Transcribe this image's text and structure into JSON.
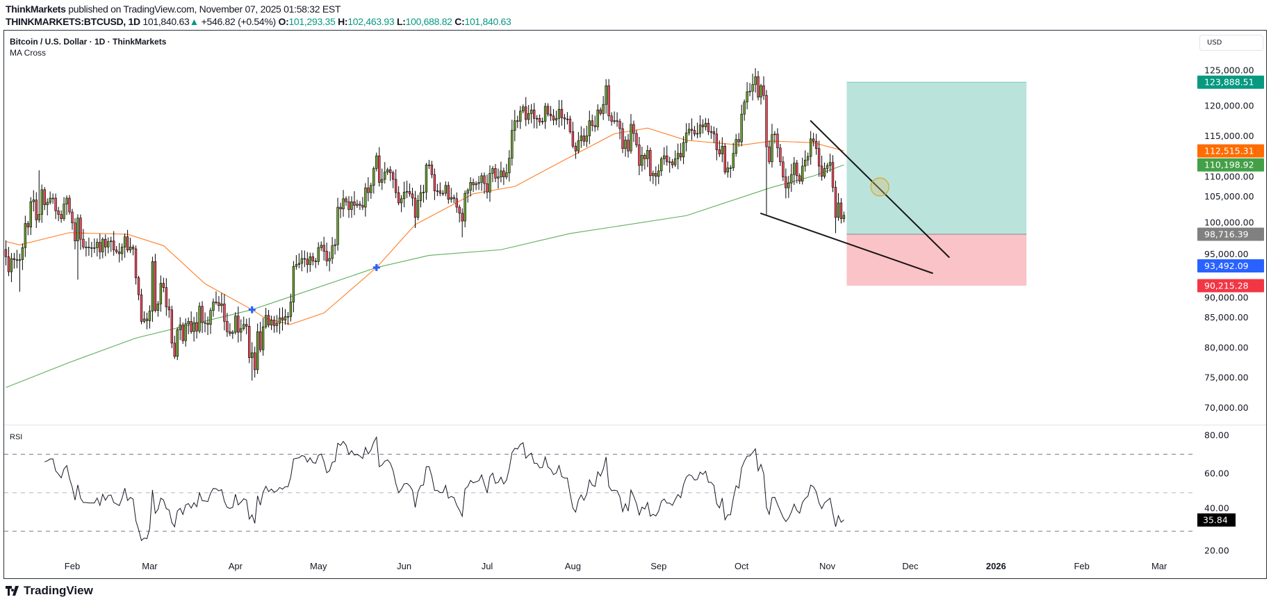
{
  "header": {
    "publisher": "ThinkMarkets",
    "published_text": "published on TradingView.com, November 07, 2025 01:58:32 EST",
    "symbol": "THINKMARKETS:BTCUSD, 1D",
    "last": "101,840.63",
    "change_icon": "triangle-up-icon",
    "change": "+546.82 (+0.54%)",
    "o_label": "O:",
    "o": "101,293.35",
    "h_label": "H:",
    "h": "102,463.93",
    "l_label": "L:",
    "l": "100,688.82",
    "c_label": "C:",
    "c": "101,840.63"
  },
  "legend": {
    "title": "Bitcoin / U.S. Dollar · 1D · ThinkMarkets",
    "indicator": "MA Cross"
  },
  "currency_button": "USD",
  "rsi_label": "RSI",
  "footer_logo": "TradingView",
  "colors": {
    "up": "#6d9f2f",
    "down": "#e84a5a",
    "ma_fast": "#ff7f27",
    "ma_slow": "#5cad5c",
    "cross": "#2962ff",
    "target_fill": "#bae3dc",
    "stop_fill": "#f9c3c7",
    "rsi": "#131722"
  },
  "chart_data": {
    "type": "candlestick",
    "title": "Bitcoin / U.S. Dollar · 1D · ThinkMarkets",
    "price_axis": {
      "ticks": [
        125000,
        120000,
        115000,
        110000,
        105000,
        100000,
        95000,
        90000,
        85000,
        80000,
        75000,
        70000
      ],
      "ylim": [
        67000,
        129000
      ]
    },
    "x_ticks": [
      {
        "label": "Feb",
        "date": "2025-02-01"
      },
      {
        "label": "Mar",
        "date": "2025-03-01"
      },
      {
        "label": "Apr",
        "date": "2025-04-01"
      },
      {
        "label": "May",
        "date": "2025-05-01"
      },
      {
        "label": "Jun",
        "date": "2025-06-01"
      },
      {
        "label": "Jul",
        "date": "2025-07-01"
      },
      {
        "label": "Aug",
        "date": "2025-08-01"
      },
      {
        "label": "Sep",
        "date": "2025-09-01"
      },
      {
        "label": "Oct",
        "date": "2025-10-01"
      },
      {
        "label": "Nov",
        "date": "2025-11-01"
      },
      {
        "label": "Dec",
        "date": "2025-12-01"
      },
      {
        "label": "2026",
        "date": "2026-01-01",
        "bold": true
      },
      {
        "label": "Feb",
        "date": "2026-02-01"
      },
      {
        "label": "Mar",
        "date": "2026-03-01"
      }
    ],
    "daily_close": [
      {
        "month": "2025-01",
        "first_day": 8,
        "close": [
          95000,
          92500,
          94700,
          94500,
          94500,
          94500,
          96500,
          100500,
          99900,
          104100,
          104400,
          101100,
          102000,
          106100,
          103600,
          104000,
          104700,
          104700,
          102600,
          102000,
          101300,
          103700,
          104700,
          102400
        ]
      },
      {
        "month": "2025-02",
        "first_day": 1,
        "close": [
          100600,
          97600,
          101400,
          97900,
          96600,
          96600,
          96500,
          96500,
          96500,
          97400,
          95800,
          97900,
          96600,
          97500,
          97600,
          96100,
          95800,
          95500,
          96600,
          98300,
          96100,
          96600,
          96300,
          91500,
          88700,
          84300,
          84700,
          84400
        ]
      },
      {
        "month": "2025-03",
        "first_day": 1,
        "close": [
          86000,
          94200,
          86100,
          87200,
          90600,
          89900,
          86700,
          86200,
          80700,
          78500,
          82900,
          83700,
          81100,
          83900,
          84300,
          82600,
          84100,
          82700,
          86800,
          84100,
          84000,
          83800,
          86100,
          87500,
          87400,
          86900,
          87200,
          84300,
          82600,
          82300,
          82500
        ]
      },
      {
        "month": "2025-04",
        "first_day": 1,
        "close": [
          85200,
          82500,
          83100,
          83800,
          83500,
          78300,
          79100,
          76300,
          82600,
          79600,
          83400,
          85300,
          83700,
          84500,
          83600,
          84000,
          84900,
          84500,
          85100,
          85100,
          87500,
          93400,
          93700,
          93900,
          94700,
          94600,
          93700,
          95000,
          94300,
          94200
        ]
      },
      {
        "month": "2025-05",
        "first_day": 1,
        "close": [
          96500,
          96900,
          95900,
          94300,
          94700,
          96800,
          97000,
          103200,
          102900,
          104600,
          104100,
          102800,
          104100,
          103500,
          103700,
          103500,
          103200,
          106400,
          105600,
          106800,
          109600,
          111700,
          107300,
          107800,
          109000,
          109400,
          108900,
          107800,
          105600,
          103900,
          104600
        ]
      },
      {
        "month": "2025-06",
        "first_day": 1,
        "close": [
          105700,
          105800,
          105400,
          104700,
          101500,
          104300,
          105600,
          105700,
          110200,
          110200,
          108600,
          105900,
          105900,
          105500,
          105500,
          106800,
          104500,
          104800,
          104600,
          103200,
          102200,
          100900,
          105500,
          106000,
          107300,
          106900,
          107100,
          107300,
          108400,
          107100
        ]
      },
      {
        "month": "2025-07",
        "first_day": 1,
        "close": [
          105700,
          108800,
          109600,
          108000,
          108200,
          109200,
          108200,
          108900,
          111300,
          115900,
          117500,
          117400,
          119100,
          119800,
          117700,
          118700,
          119300,
          117900,
          117900,
          117300,
          117400,
          119900,
          118600,
          118300,
          117600,
          117900,
          119400,
          118000,
          117800,
          117800,
          115700
        ]
      },
      {
        "month": "2025-08",
        "first_day": 1,
        "close": [
          113300,
          112500,
          114200,
          115000,
          114100,
          115000,
          117500,
          116700,
          116500,
          119300,
          118700,
          120200,
          123300,
          118300,
          117400,
          117500,
          117400,
          116200,
          112900,
          114300,
          112500,
          116900,
          115400,
          113500,
          110100,
          111800,
          111200,
          112600,
          108400,
          108800,
          108300
        ]
      },
      {
        "month": "2025-09",
        "first_day": 1,
        "close": [
          109200,
          111200,
          111700,
          110700,
          110700,
          110200,
          111200,
          112100,
          111500,
          113900,
          115500,
          116100,
          115900,
          115300,
          115400,
          116800,
          116500,
          117100,
          115700,
          115700,
          115300,
          112700,
          112000,
          113300,
          109000,
          109700,
          109700,
          112100,
          114400,
          114000
        ]
      },
      {
        "month": "2025-10",
        "first_day": 1,
        "close": [
          118600,
          120600,
          122300,
          122400,
          123500,
          124800,
          121400,
          123300,
          121700,
          113200,
          110700,
          115200,
          115300,
          113000,
          110700,
          108200,
          106400,
          107200,
          108600,
          110500,
          108400,
          107500,
          110000,
          111000,
          111600,
          114500,
          114100,
          112900,
          110000,
          108300,
          109600
        ]
      },
      {
        "month": "2025-11",
        "first_day": 1,
        "close": [
          110100,
          110600,
          106500,
          101500,
          103900,
          101300
        ]
      }
    ],
    "last_candle": {
      "date": "2025-11-07",
      "open": 101293.35,
      "high": 102463.93,
      "low": 100688.82,
      "close": 101840.63
    },
    "wick_extremes": [
      {
        "date": "2025-01-13",
        "low": 89200
      },
      {
        "date": "2025-01-20",
        "high": 109300
      },
      {
        "date": "2025-02-03",
        "low": 91200
      },
      {
        "date": "2025-03-02",
        "high": 95000
      },
      {
        "date": "2025-04-07",
        "low": 74500
      },
      {
        "date": "2025-06-22",
        "low": 98200
      },
      {
        "date": "2025-08-14",
        "high": 124400
      },
      {
        "date": "2025-10-06",
        "high": 126200
      },
      {
        "date": "2025-10-10",
        "low": 102000
      },
      {
        "date": "2025-11-04",
        "low": 98900
      }
    ],
    "ma_fast": [
      [
        "2025-01-08",
        97503
      ],
      [
        "2025-01-13",
        96966
      ],
      [
        "2025-01-31",
        98979
      ],
      [
        "2025-02-21",
        98710
      ],
      [
        "2025-03-06",
        96832
      ],
      [
        "2025-03-21",
        90526
      ],
      [
        "2025-04-07",
        86233
      ],
      [
        "2025-04-12",
        84758
      ],
      [
        "2025-04-21",
        83818
      ],
      [
        "2025-05-03",
        85697
      ],
      [
        "2025-05-22",
        93210
      ],
      [
        "2025-06-05",
        100320
      ],
      [
        "2025-06-26",
        105418
      ],
      [
        "2025-07-11",
        106626
      ],
      [
        "2025-07-28",
        110785
      ],
      [
        "2025-08-16",
        115346
      ],
      [
        "2025-08-28",
        116285
      ],
      [
        "2025-09-11",
        114273
      ],
      [
        "2025-10-01",
        113468
      ],
      [
        "2025-10-12",
        114139
      ],
      [
        "2025-10-27",
        113871
      ],
      [
        "2025-11-07",
        112515
      ]
    ],
    "ma_slow": [
      [
        "2025-01-08",
        73354
      ],
      [
        "2025-01-31",
        77513
      ],
      [
        "2025-02-24",
        81538
      ],
      [
        "2025-04-07",
        86233
      ],
      [
        "2025-05-22",
        93210
      ],
      [
        "2025-06-10",
        95222
      ],
      [
        "2025-07-06",
        96161
      ],
      [
        "2025-07-31",
        98844
      ],
      [
        "2025-09-11",
        101796
      ],
      [
        "2025-10-12",
        106492
      ],
      [
        "2025-10-27",
        108370
      ],
      [
        "2025-11-07",
        110199
      ]
    ],
    "cross_markers": [
      {
        "date": "2025-04-07",
        "price": 86233
      },
      {
        "date": "2025-05-22",
        "price": 93210
      }
    ],
    "position": {
      "start_date": "2025-11-08",
      "end_date": "2026-01-12",
      "target": 123888.51,
      "entry": 98716.39,
      "stop": 90215.28
    },
    "trendlines": [
      {
        "from": [
          "2025-10-26",
          117470
        ],
        "to": [
          "2025-12-15",
          94925
        ]
      },
      {
        "from": [
          "2025-10-08",
          102170
        ],
        "to": [
          "2025-12-09",
          92280
        ]
      }
    ],
    "highlight_circle": {
      "date": "2025-11-20",
      "price": 106540
    },
    "price_badges": [
      {
        "text": "123,888.51",
        "value": 123888.51,
        "color": "#089981"
      },
      {
        "text": "112,515.31",
        "value": 112515.31,
        "color": "#ff6d00"
      },
      {
        "text": "110,198.92",
        "value": 110198.92,
        "color": "#43a047"
      },
      {
        "text": "98,716.39",
        "value": 98716.39,
        "color": "#808080"
      },
      {
        "text": "93,492.09",
        "value": 93492.09,
        "color": "#2962ff"
      },
      {
        "text": "90,215.28",
        "value": 90215.28,
        "color": "#f23645"
      }
    ],
    "rsi": {
      "period": 14,
      "levels": [
        70,
        50,
        30
      ],
      "ticks": [
        80,
        60,
        40,
        20
      ],
      "ylim": [
        15,
        85
      ],
      "last": {
        "text": "35.84",
        "value": 35.84,
        "color": "#000000"
      }
    }
  }
}
